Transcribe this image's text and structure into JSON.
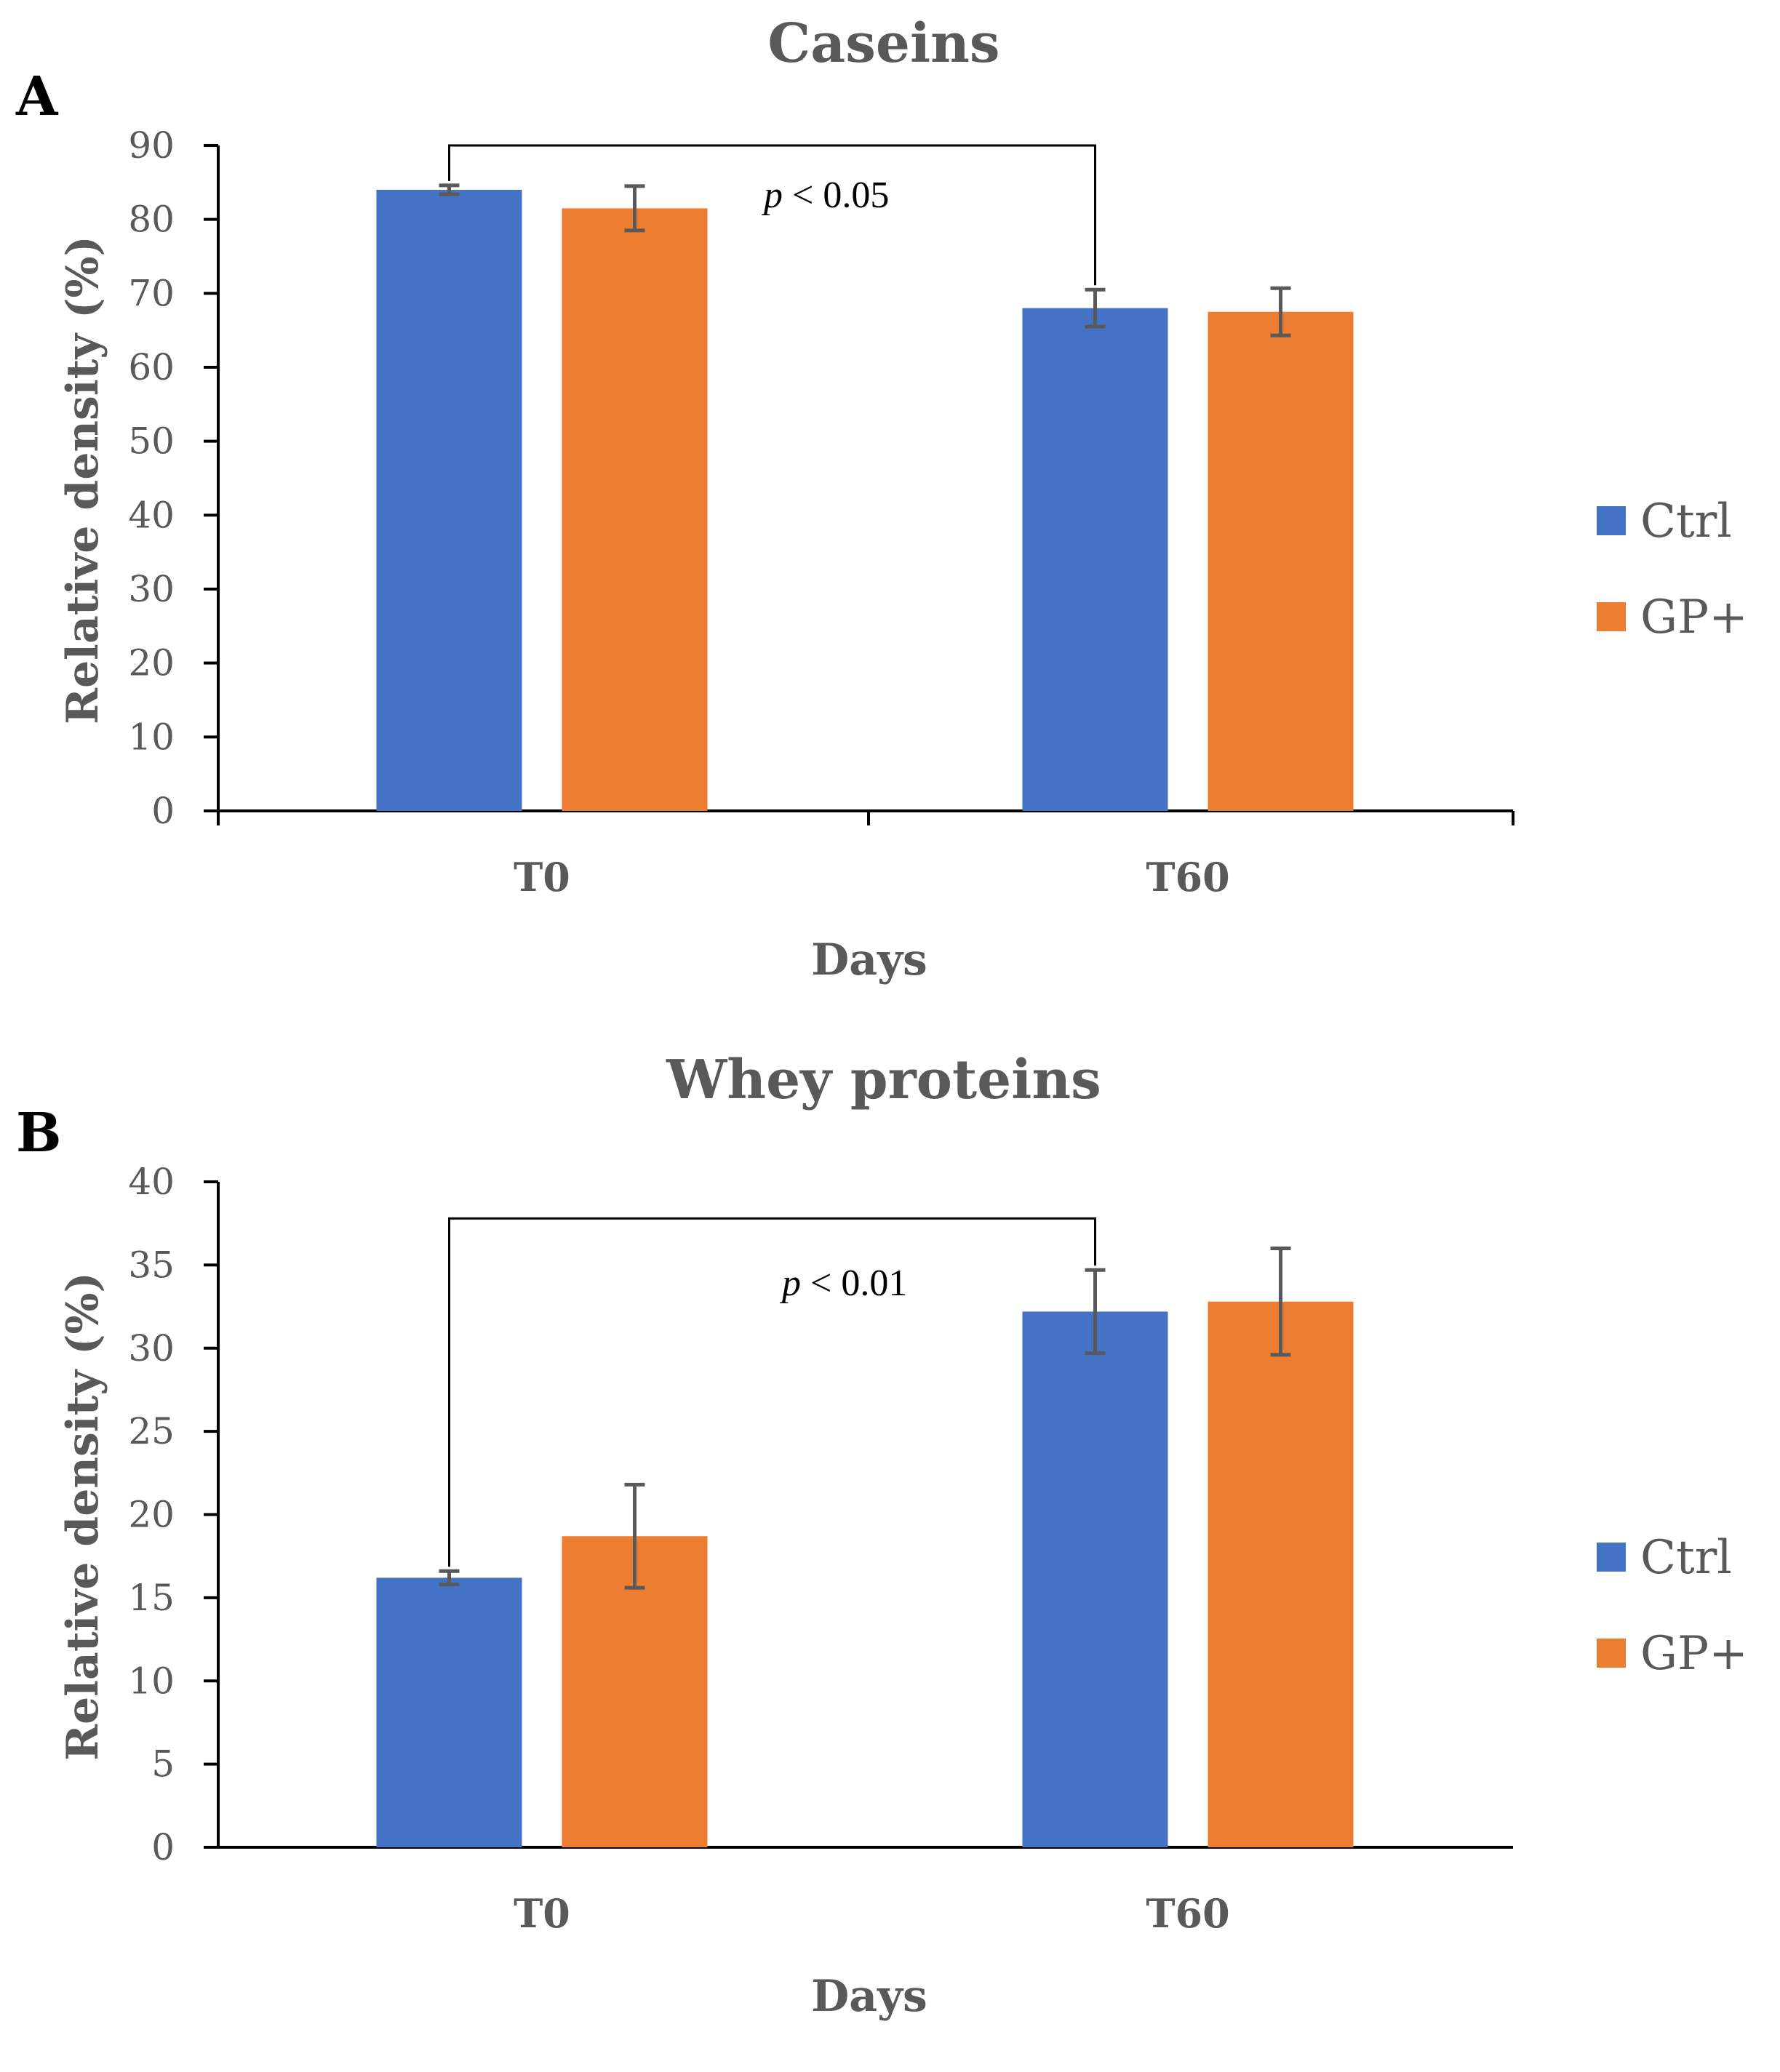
{
  "chart_data": [
    {
      "type": "bar",
      "panel_letter": "A",
      "title": "Caseins",
      "xlabel": "Days",
      "ylabel": "Relative density (%)",
      "categories": [
        "T0",
        "T60"
      ],
      "ylim": [
        0,
        90
      ],
      "yticks": [
        0,
        10,
        20,
        30,
        40,
        50,
        60,
        70,
        80,
        90
      ],
      "grid": false,
      "legend_position": "right",
      "series": [
        {
          "name": "Ctrl",
          "color": "#4472c4",
          "values": [
            84.0,
            68.0
          ],
          "errors": [
            0.6,
            2.5
          ]
        },
        {
          "name": "GP+",
          "color": "#ed7d31",
          "values": [
            81.5,
            67.5
          ],
          "errors": [
            3.0,
            3.2
          ]
        }
      ],
      "annotation": {
        "p_symbol": "p",
        "text": " < 0.05",
        "from": "T0 Ctrl",
        "to": "T60 Ctrl",
        "bracket_level": 90
      }
    },
    {
      "type": "bar",
      "panel_letter": "B",
      "title": "Whey proteins",
      "xlabel": "Days",
      "ylabel": "Relative density (%)",
      "categories": [
        "T0",
        "T60"
      ],
      "ylim": [
        0,
        40
      ],
      "yticks": [
        0,
        5,
        10,
        15,
        20,
        25,
        30,
        35,
        40
      ],
      "grid": false,
      "legend_position": "right",
      "series": [
        {
          "name": "Ctrl",
          "color": "#4472c4",
          "values": [
            16.2,
            32.2
          ],
          "errors": [
            0.4,
            2.5
          ]
        },
        {
          "name": "GP+",
          "color": "#ed7d31",
          "values": [
            18.7,
            32.8
          ],
          "errors": [
            3.1,
            3.2
          ]
        }
      ],
      "annotation": {
        "p_symbol": "p",
        "text": " < 0.01",
        "from": "T0 Ctrl",
        "to": "T60 Ctrl",
        "bracket_level": 37.8
      }
    }
  ]
}
